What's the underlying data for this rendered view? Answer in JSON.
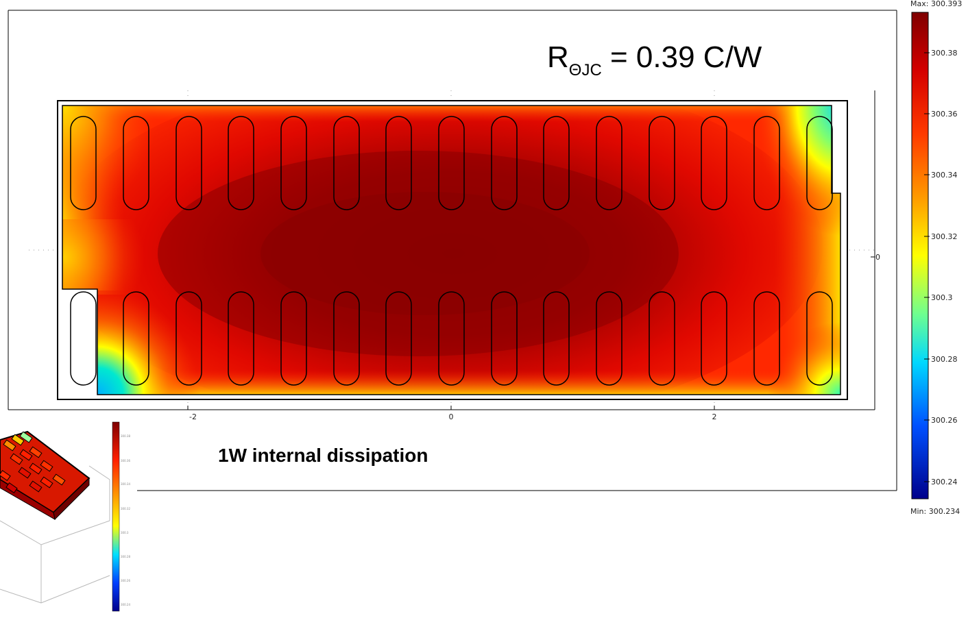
{
  "formula": {
    "base": "R",
    "subscript": "ΘJC",
    "rest": " = 0.39 C/W"
  },
  "caption": "1W internal dissipation",
  "axis": {
    "x_ticks": [
      "-2",
      "0",
      "2"
    ],
    "y_tick": "0"
  },
  "colorbar": {
    "max_label": "Max: 300.393",
    "min_label": "Min: 300.234",
    "ticks": [
      "300.38",
      "300.36",
      "300.34",
      "300.32",
      "300.3",
      "300.28",
      "300.26",
      "300.24"
    ],
    "colormap": "jet"
  },
  "colors": {
    "hot": "#8b0000",
    "red": "#ff1a00",
    "orange": "#ff8c00",
    "yellow": "#ffff00",
    "cyan": "#00e5ff",
    "blue": "#0000ff",
    "outline": "#000000"
  },
  "inset": {
    "description": "3D view of the package thermal plot",
    "colorbar_ticks": [
      "300.38",
      "300.36",
      "300.34",
      "300.32",
      "300.3",
      "300.28",
      "300.26",
      "300.24"
    ]
  }
}
